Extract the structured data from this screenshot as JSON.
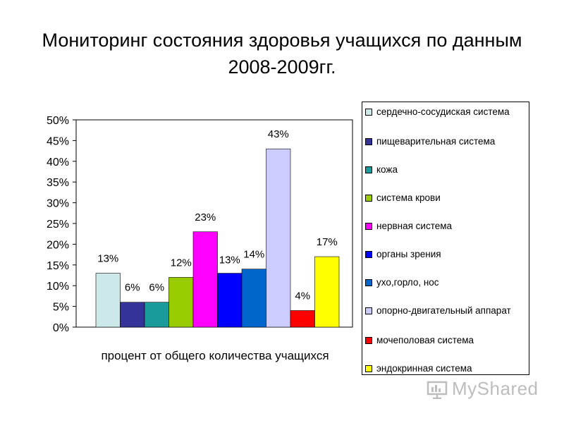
{
  "title": "Мониторинг состояния здоровья учащихся по данным 2008-2009гг.",
  "watermark": "MyShared",
  "chart_data": {
    "type": "bar",
    "xlabel": "процент от общего количества учащихся",
    "ylim": [
      0,
      50
    ],
    "yticks": [
      "0%",
      "5%",
      "10%",
      "15%",
      "20%",
      "25%",
      "30%",
      "35%",
      "40%",
      "45%",
      "50%"
    ],
    "legend_position": "right",
    "series": [
      {
        "name": "сердечно-сосудиская система",
        "value": 13,
        "label": "13%",
        "color": "#cce8e8"
      },
      {
        "name": "пищеварительная система",
        "value": 6,
        "label": "6%",
        "color": "#333399"
      },
      {
        "name": "кожа",
        "value": 6,
        "label": "6%",
        "color": "#1a9a9a"
      },
      {
        "name": "система крови",
        "value": 12,
        "label": "12%",
        "color": "#99cc00"
      },
      {
        "name": "нервная система",
        "value": 23,
        "label": "23%",
        "color": "#ff00ff"
      },
      {
        "name": "органы зрения",
        "value": 13,
        "label": "13%",
        "color": "#0000ff"
      },
      {
        "name": "ухо,горло, нос",
        "value": 14,
        "label": "14%",
        "color": "#0066cc"
      },
      {
        "name": "опорно-двигательный аппарат",
        "value": 43,
        "label": "43%",
        "color": "#ccccff"
      },
      {
        "name": "мочеполовая система",
        "value": 4,
        "label": "4%",
        "color": "#ff0000"
      },
      {
        "name": "эндокринная система",
        "value": 17,
        "label": "17%",
        "color": "#ffff00"
      }
    ]
  }
}
